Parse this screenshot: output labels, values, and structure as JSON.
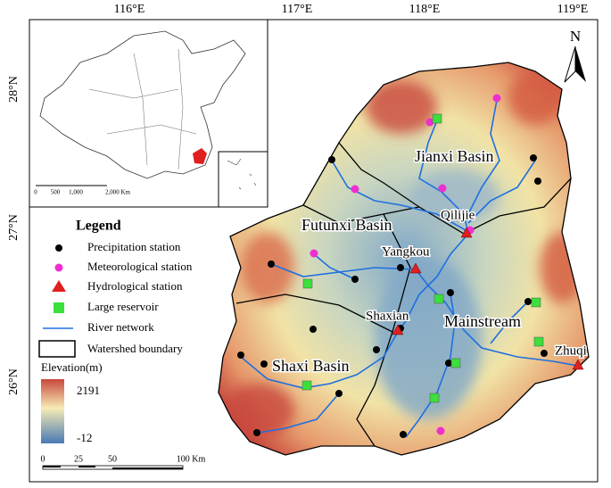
{
  "axes": {
    "longitude": [
      "116°E",
      "117°E",
      "118°E",
      "119°E"
    ],
    "latitude": [
      "28°N",
      "27°N",
      "26°N"
    ]
  },
  "north": "N",
  "basins": [
    "Jianxi Basin",
    "Futunxi Basin",
    "Shaxi Basin",
    "Mainstream"
  ],
  "stations": [
    "Qilijie",
    "Yangkou",
    "Shaxian",
    "Zhuqi"
  ],
  "legend": {
    "title": "Legend",
    "items": [
      "Precipitation station",
      "Meteorological station",
      "Hydrological station",
      "Large reservoir",
      "River network",
      "Watershed boundary"
    ],
    "elevation": {
      "title": "Elevation(m)",
      "max": "2191",
      "min": "-12"
    },
    "scale": [
      "0",
      "25",
      "50",
      "100 Km"
    ]
  },
  "inset": {
    "scale": [
      "0",
      "500",
      "1,000",
      "2,000 Km"
    ]
  }
}
